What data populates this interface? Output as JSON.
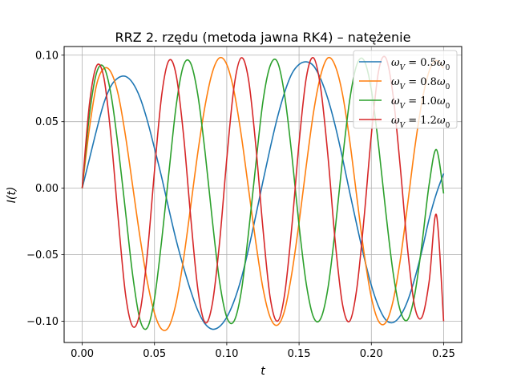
{
  "chart_data": {
    "type": "line",
    "title": "RRZ 2. rzędu (metoda jawna RK4) – natężenie",
    "xlabel": "t",
    "ylabel": "I(t)",
    "xlim": [
      -0.0125,
      0.2625
    ],
    "ylim": [
      -0.116,
      0.1065
    ],
    "grid": true,
    "legend_position": "top-right",
    "xticks": [
      0.0,
      0.05,
      0.1,
      0.15,
      0.2,
      0.25
    ],
    "xtick_labels": [
      "0.00",
      "0.05",
      "0.10",
      "0.15",
      "0.20",
      "0.25"
    ],
    "yticks": [
      -0.1,
      -0.05,
      0.0,
      0.05,
      0.1
    ],
    "ytick_labels": [
      "−0.10",
      "−0.05",
      "0.00",
      "0.05",
      "0.10"
    ],
    "t_range": [
      0.0,
      0.25
    ],
    "series": [
      {
        "name": "ω_V = 0.5ω_0",
        "legend_label": "ωV = 0.5ω0",
        "color": "#1f77b4",
        "x": [
          0.0,
          0.005,
          0.01,
          0.015,
          0.02,
          0.025,
          0.03,
          0.035,
          0.04,
          0.045,
          0.05,
          0.055,
          0.06,
          0.065,
          0.07,
          0.075,
          0.08,
          0.085,
          0.09,
          0.095,
          0.1,
          0.105,
          0.11,
          0.115,
          0.12,
          0.125,
          0.13,
          0.135,
          0.14,
          0.145,
          0.15,
          0.155,
          0.16,
          0.165,
          0.17,
          0.175,
          0.18,
          0.185,
          0.19,
          0.195,
          0.2,
          0.205,
          0.21,
          0.215,
          0.22,
          0.225,
          0.23,
          0.235,
          0.24,
          0.245,
          0.25
        ],
        "values": [
          0.0,
          0.022,
          0.044,
          0.064,
          0.077,
          0.083,
          0.084,
          0.079,
          0.068,
          0.051,
          0.03,
          0.008,
          -0.016,
          -0.039,
          -0.059,
          -0.077,
          -0.092,
          -0.102,
          -0.106,
          -0.104,
          -0.097,
          -0.085,
          -0.068,
          -0.046,
          -0.021,
          0.005,
          0.03,
          0.053,
          0.072,
          0.086,
          0.093,
          0.095,
          0.092,
          0.082,
          0.067,
          0.047,
          0.023,
          -0.003,
          -0.028,
          -0.052,
          -0.073,
          -0.089,
          -0.099,
          -0.101,
          -0.096,
          -0.085,
          -0.068,
          -0.047,
          -0.023,
          -0.004,
          0.011
        ]
      },
      {
        "name": "ω_V = 0.8ω_0",
        "legend_label": "ωV = 0.8ω0",
        "color": "#ff7f0e",
        "x": [
          0.0,
          0.005,
          0.01,
          0.015,
          0.02,
          0.025,
          0.03,
          0.035,
          0.04,
          0.045,
          0.05,
          0.055,
          0.06,
          0.065,
          0.07,
          0.075,
          0.08,
          0.085,
          0.09,
          0.095,
          0.1,
          0.105,
          0.11,
          0.115,
          0.12,
          0.125,
          0.13,
          0.135,
          0.14,
          0.145,
          0.15,
          0.155,
          0.16,
          0.165,
          0.17,
          0.175,
          0.18,
          0.185,
          0.19,
          0.195,
          0.2,
          0.205,
          0.21,
          0.215,
          0.22,
          0.225,
          0.23,
          0.235,
          0.24,
          0.245,
          0.25
        ],
        "values": [
          0.0,
          0.045,
          0.078,
          0.09,
          0.087,
          0.07,
          0.039,
          0.001,
          -0.037,
          -0.07,
          -0.094,
          -0.106,
          -0.104,
          -0.086,
          -0.054,
          -0.014,
          0.027,
          0.062,
          0.087,
          0.098,
          0.093,
          0.073,
          0.04,
          0.0,
          -0.04,
          -0.075,
          -0.097,
          -0.103,
          -0.092,
          -0.064,
          -0.026,
          0.017,
          0.057,
          0.085,
          0.098,
          0.092,
          0.071,
          0.036,
          -0.007,
          -0.049,
          -0.082,
          -0.1,
          -0.101,
          -0.085,
          -0.054,
          -0.013,
          0.03,
          0.065,
          0.088,
          0.096,
          0.09
        ]
      },
      {
        "name": "ω_V = 1.0ω_0",
        "legend_label": "ωV = 1.0ω0",
        "color": "#2ca02c",
        "x": [
          0.0,
          0.005,
          0.01,
          0.015,
          0.02,
          0.025,
          0.03,
          0.035,
          0.04,
          0.045,
          0.05,
          0.055,
          0.06,
          0.065,
          0.07,
          0.075,
          0.08,
          0.085,
          0.09,
          0.095,
          0.1,
          0.105,
          0.11,
          0.115,
          0.12,
          0.125,
          0.13,
          0.135,
          0.14,
          0.145,
          0.15,
          0.155,
          0.16,
          0.165,
          0.17,
          0.175,
          0.18,
          0.185,
          0.19,
          0.195,
          0.2,
          0.205,
          0.21,
          0.215,
          0.22,
          0.225,
          0.23,
          0.235,
          0.24,
          0.245,
          0.25
        ],
        "values": [
          0.0,
          0.055,
          0.087,
          0.091,
          0.07,
          0.03,
          -0.018,
          -0.066,
          -0.099,
          -0.105,
          -0.083,
          -0.039,
          0.012,
          0.062,
          0.092,
          0.094,
          0.07,
          0.027,
          -0.024,
          -0.07,
          -0.097,
          -0.1,
          -0.078,
          -0.034,
          0.017,
          0.065,
          0.092,
          0.095,
          0.07,
          0.025,
          -0.028,
          -0.072,
          -0.097,
          -0.098,
          -0.075,
          -0.031,
          0.021,
          0.066,
          0.093,
          0.096,
          0.074,
          0.032,
          -0.018,
          -0.063,
          -0.092,
          -0.099,
          -0.08,
          -0.042,
          0.003,
          0.029,
          -0.004
        ]
      },
      {
        "name": "ω_V = 1.2ω_0",
        "legend_label": "ωV = 1.2ω0",
        "color": "#d62728",
        "x": [
          0.0,
          0.005,
          0.01,
          0.015,
          0.02,
          0.025,
          0.03,
          0.035,
          0.04,
          0.045,
          0.05,
          0.055,
          0.06,
          0.065,
          0.07,
          0.075,
          0.08,
          0.085,
          0.09,
          0.095,
          0.1,
          0.105,
          0.11,
          0.115,
          0.12,
          0.125,
          0.13,
          0.135,
          0.14,
          0.145,
          0.15,
          0.155,
          0.16,
          0.165,
          0.17,
          0.175,
          0.18,
          0.185,
          0.19,
          0.195,
          0.2,
          0.205,
          0.21,
          0.215,
          0.22,
          0.225,
          0.23,
          0.235,
          0.24,
          0.245,
          0.25
        ],
        "values": [
          0.0,
          0.063,
          0.092,
          0.083,
          0.038,
          -0.024,
          -0.08,
          -0.104,
          -0.093,
          -0.05,
          0.013,
          0.07,
          0.096,
          0.085,
          0.041,
          -0.021,
          -0.076,
          -0.101,
          -0.087,
          -0.041,
          0.022,
          0.076,
          0.098,
          0.082,
          0.033,
          -0.03,
          -0.082,
          -0.1,
          -0.08,
          -0.029,
          0.034,
          0.083,
          0.098,
          0.075,
          0.024,
          -0.04,
          -0.087,
          -0.1,
          -0.075,
          -0.022,
          0.04,
          0.088,
          0.098,
          0.07,
          0.016,
          -0.045,
          -0.089,
          -0.097,
          -0.07,
          -0.02,
          -0.1
        ]
      }
    ]
  }
}
